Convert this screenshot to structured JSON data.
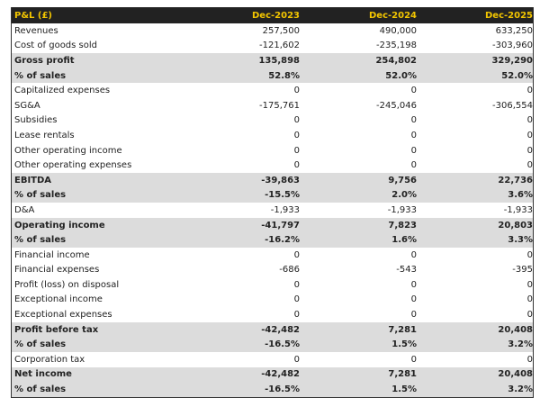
{
  "header": {
    "label": "P&L (£)",
    "periods": [
      "Dec-2023",
      "Dec-2024",
      "Dec-2025"
    ]
  },
  "rows": [
    {
      "label": "Revenues",
      "values": [
        "257,500",
        "490,000",
        "633,250"
      ],
      "bold": false
    },
    {
      "label": "Cost of goods sold",
      "values": [
        "-121,602",
        "-235,198",
        "-303,960"
      ],
      "bold": false
    },
    {
      "label": "Gross profit",
      "values": [
        "135,898",
        "254,802",
        "329,290"
      ],
      "bold": true
    },
    {
      "label": "% of sales",
      "values": [
        "52.8%",
        "52.0%",
        "52.0%"
      ],
      "bold": true
    },
    {
      "label": "Capitalized expenses",
      "values": [
        "0",
        "0",
        "0"
      ],
      "bold": false
    },
    {
      "label": "SG&A",
      "values": [
        "-175,761",
        "-245,046",
        "-306,554"
      ],
      "bold": false
    },
    {
      "label": "Subsidies",
      "values": [
        "0",
        "0",
        "0"
      ],
      "bold": false
    },
    {
      "label": "Lease rentals",
      "values": [
        "0",
        "0",
        "0"
      ],
      "bold": false
    },
    {
      "label": "Other operating income",
      "values": [
        "0",
        "0",
        "0"
      ],
      "bold": false
    },
    {
      "label": "Other operating expenses",
      "values": [
        "0",
        "0",
        "0"
      ],
      "bold": false
    },
    {
      "label": "EBITDA",
      "values": [
        "-39,863",
        "9,756",
        "22,736"
      ],
      "bold": true
    },
    {
      "label": "% of sales",
      "values": [
        "-15.5%",
        "2.0%",
        "3.6%"
      ],
      "bold": true
    },
    {
      "label": "D&A",
      "values": [
        "-1,933",
        "-1,933",
        "-1,933"
      ],
      "bold": false
    },
    {
      "label": "Operating income",
      "values": [
        "-41,797",
        "7,823",
        "20,803"
      ],
      "bold": true
    },
    {
      "label": "% of sales",
      "values": [
        "-16.2%",
        "1.6%",
        "3.3%"
      ],
      "bold": true
    },
    {
      "label": "Financial income",
      "values": [
        "0",
        "0",
        "0"
      ],
      "bold": false
    },
    {
      "label": "Financial expenses",
      "values": [
        "-686",
        "-543",
        "-395"
      ],
      "bold": false
    },
    {
      "label": "Profit (loss) on disposal",
      "values": [
        "0",
        "0",
        "0"
      ],
      "bold": false
    },
    {
      "label": "Exceptional income",
      "values": [
        "0",
        "0",
        "0"
      ],
      "bold": false
    },
    {
      "label": "Exceptional expenses",
      "values": [
        "0",
        "0",
        "0"
      ],
      "bold": false
    },
    {
      "label": "Profit before tax",
      "values": [
        "-42,482",
        "7,281",
        "20,408"
      ],
      "bold": true
    },
    {
      "label": "% of sales",
      "values": [
        "-16.5%",
        "1.5%",
        "3.2%"
      ],
      "bold": true
    },
    {
      "label": "Corporation tax",
      "values": [
        "0",
        "0",
        "0"
      ],
      "bold": false
    },
    {
      "label": "Net income",
      "values": [
        "-42,482",
        "7,281",
        "20,408"
      ],
      "bold": true
    },
    {
      "label": "% of sales",
      "values": [
        "-16.5%",
        "1.5%",
        "3.2%"
      ],
      "bold": true
    }
  ],
  "colors": {
    "header_bg": "#222222",
    "header_text": "#f2c500",
    "highlight_bg": "#dcdcdc"
  }
}
